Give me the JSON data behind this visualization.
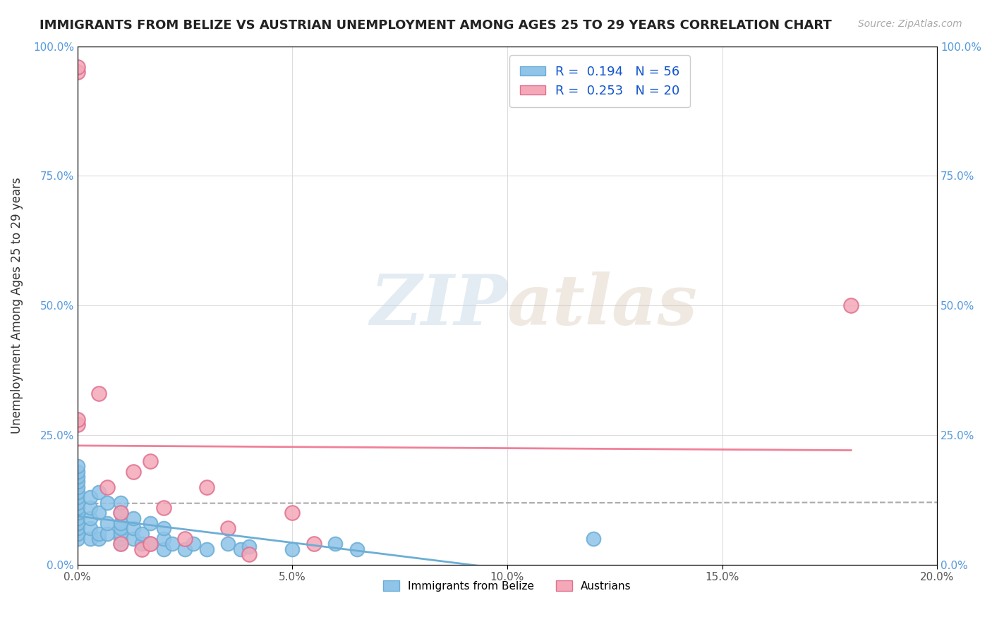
{
  "title": "IMMIGRANTS FROM BELIZE VS AUSTRIAN UNEMPLOYMENT AMONG AGES 25 TO 29 YEARS CORRELATION CHART",
  "source_text": "Source: ZipAtlas.com",
  "ylabel": "Unemployment Among Ages 25 to 29 years",
  "xlim": [
    0.0,
    0.2
  ],
  "ylim": [
    0.0,
    1.0
  ],
  "xtick_labels": [
    "0.0%",
    "5.0%",
    "10.0%",
    "15.0%",
    "20.0%"
  ],
  "xtick_values": [
    0.0,
    0.05,
    0.1,
    0.15,
    0.2
  ],
  "ytick_labels": [
    "0.0%",
    "25.0%",
    "50.0%",
    "75.0%",
    "100.0%"
  ],
  "ytick_values": [
    0.0,
    0.25,
    0.5,
    0.75,
    1.0
  ],
  "legend_r1": "R =  0.194",
  "legend_n1": "N = 56",
  "legend_r2": "R =  0.253",
  "legend_n2": "N = 20",
  "color_belize": "#90c4e8",
  "color_belize_edge": "#6baed6",
  "color_austrians": "#f4a8b8",
  "color_austrians_edge": "#e07090",
  "color_belize_line": "#6baed6",
  "color_austrians_line": "#f08098",
  "watermark_zip": "ZIP",
  "watermark_atlas": "atlas",
  "belize_x": [
    0.0,
    0.0,
    0.0,
    0.0,
    0.0,
    0.0,
    0.0,
    0.0,
    0.0,
    0.0,
    0.0,
    0.0,
    0.0,
    0.0,
    0.0,
    0.0,
    0.003,
    0.003,
    0.003,
    0.003,
    0.003,
    0.005,
    0.005,
    0.005,
    0.005,
    0.007,
    0.007,
    0.007,
    0.01,
    0.01,
    0.01,
    0.01,
    0.01,
    0.01,
    0.01,
    0.013,
    0.013,
    0.013,
    0.015,
    0.015,
    0.017,
    0.017,
    0.02,
    0.02,
    0.02,
    0.022,
    0.025,
    0.027,
    0.03,
    0.035,
    0.038,
    0.04,
    0.05,
    0.06,
    0.065,
    0.12
  ],
  "belize_y": [
    0.05,
    0.06,
    0.07,
    0.08,
    0.08,
    0.09,
    0.1,
    0.11,
    0.12,
    0.13,
    0.14,
    0.15,
    0.16,
    0.17,
    0.18,
    0.19,
    0.05,
    0.07,
    0.09,
    0.11,
    0.13,
    0.05,
    0.06,
    0.1,
    0.14,
    0.06,
    0.08,
    0.12,
    0.04,
    0.05,
    0.06,
    0.07,
    0.08,
    0.1,
    0.12,
    0.05,
    0.07,
    0.09,
    0.04,
    0.06,
    0.04,
    0.08,
    0.03,
    0.05,
    0.07,
    0.04,
    0.03,
    0.04,
    0.03,
    0.04,
    0.03,
    0.035,
    0.03,
    0.04,
    0.03,
    0.05
  ],
  "austrians_x": [
    0.0,
    0.0,
    0.0,
    0.0,
    0.005,
    0.007,
    0.01,
    0.01,
    0.013,
    0.015,
    0.017,
    0.017,
    0.02,
    0.025,
    0.03,
    0.035,
    0.04,
    0.05,
    0.055,
    0.18
  ],
  "austrians_y": [
    0.95,
    0.96,
    0.27,
    0.28,
    0.33,
    0.15,
    0.1,
    0.04,
    0.18,
    0.03,
    0.2,
    0.04,
    0.11,
    0.05,
    0.15,
    0.07,
    0.02,
    0.1,
    0.04,
    0.5
  ]
}
